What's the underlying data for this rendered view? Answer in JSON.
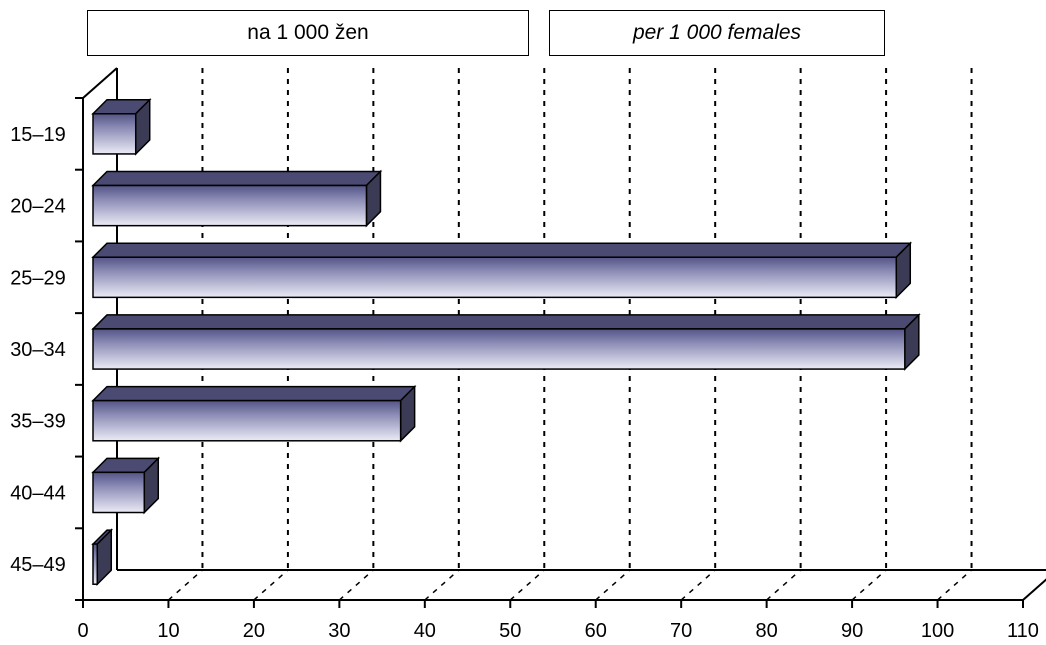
{
  "legend": {
    "czech": "na 1 000 žen",
    "english": "per 1 000 females"
  },
  "chart_data": {
    "type": "bar",
    "orientation": "horizontal",
    "style": "3d",
    "categories": [
      "15–19",
      "20–24",
      "25–29",
      "30–34",
      "35–39",
      "40–44",
      "45–49"
    ],
    "values": [
      5,
      32,
      94,
      95,
      36,
      6,
      0.5
    ],
    "xlim": [
      0,
      110
    ],
    "xticks": [
      "0",
      "10",
      "20",
      "30",
      "40",
      "50",
      "60",
      "70",
      "80",
      "90",
      "100",
      "110"
    ],
    "grid": "vertical dotted",
    "legend_labels": [
      "na 1 000 žen",
      "per 1 000 females"
    ],
    "bar_color": "#6a6a9a"
  }
}
